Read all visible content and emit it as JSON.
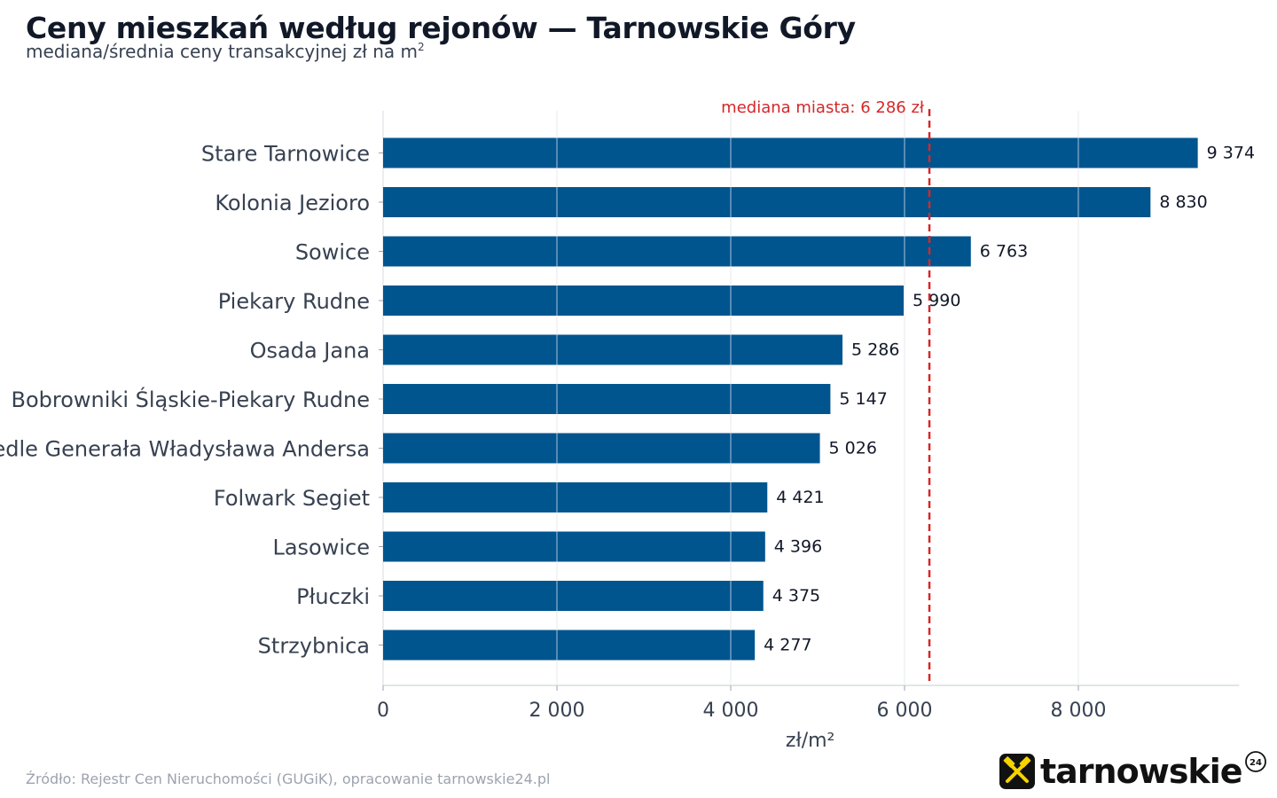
{
  "header": {
    "title": "Ceny mieszkań według rejonów — Tarnowskie Góry",
    "subtitle": "mediana/średnia ceny transakcyjnej zł na m",
    "subtitle_sup": "2"
  },
  "footer": {
    "source": "Źródło: Rejestr Cen Nieruchomości (GUGiK), opracowanie tarnowskie24.pl",
    "logo_text": "tarnowskie",
    "logo_badge": "24",
    "logo_icon": "crossed-hammers-icon"
  },
  "colors": {
    "bar": "#00558f",
    "median_line": "#d62728",
    "grid": "#e5e7eb",
    "text": "#374151",
    "value_label": "#111827",
    "logo_accent": "#f5d300"
  },
  "chart_data": {
    "type": "bar",
    "orientation": "horizontal",
    "categories": [
      "Stare Tarnowice",
      "Kolonia Jezioro",
      "Sowice",
      "Piekary Rudne",
      "Osada Jana",
      "Bobrowniki Śląskie-Piekary Rudne",
      "Osiedle Generała Władysława Andersa",
      "Folwark Segiet",
      "Lasowice",
      "Płuczki",
      "Strzybnica"
    ],
    "values": [
      9374,
      8830,
      6763,
      5990,
      5286,
      5147,
      5026,
      4421,
      4396,
      4375,
      4277
    ],
    "value_labels": [
      "9 374",
      "8 830",
      "6 763",
      "5 990",
      "5 286",
      "5 147",
      "5 026",
      "4 421",
      "4 396",
      "4 375",
      "4 277"
    ],
    "xlabel": "zł/m²",
    "xlim": [
      0,
      9850
    ],
    "xticks": [
      0,
      2000,
      4000,
      6000,
      8000
    ],
    "xtick_labels": [
      "0",
      "2 000",
      "4 000",
      "6 000",
      "8 000"
    ],
    "grid": true,
    "reference_line": {
      "value": 6286,
      "label": "mediana miasta: 6 286 zł",
      "style": "dashed"
    }
  }
}
